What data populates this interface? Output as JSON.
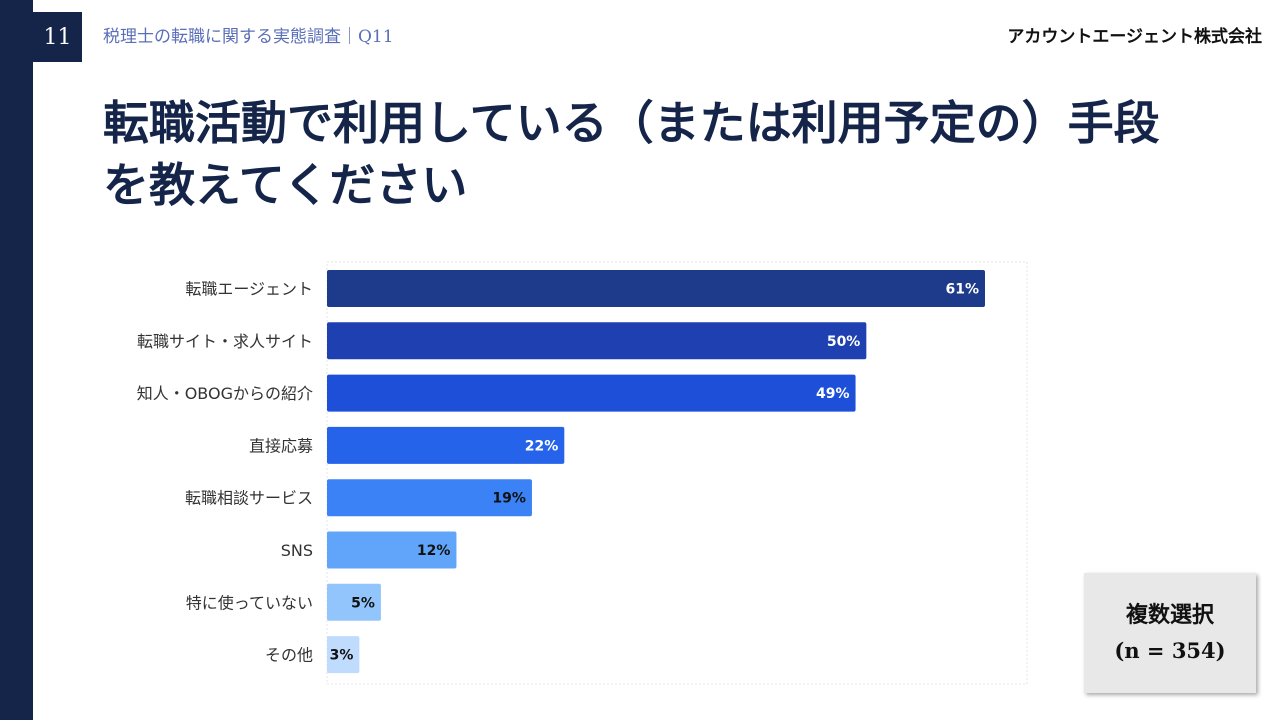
{
  "header": {
    "page_number": "11",
    "survey_label": "税理士の転職に関する実態調査｜Q11",
    "company": "アカウントエージェント株式会社"
  },
  "title": "転職活動で利用している（または利用予定の）手段を教えてください",
  "badge": {
    "line1": "複数選択",
    "line2": "(n = 354)"
  },
  "chart_data": {
    "type": "bar",
    "orientation": "horizontal",
    "categories": [
      "転職エージェント",
      "転職サイト・求人サイト",
      "知人・OBOGからの紹介",
      "直接応募",
      "転職相談サービス",
      "SNS",
      "特に使っていない",
      "その他"
    ],
    "values": [
      61,
      50,
      49,
      22,
      19,
      12,
      5,
      3
    ],
    "value_labels": [
      "61%",
      "50%",
      "49%",
      "22%",
      "19%",
      "12%",
      "5%",
      "3%"
    ],
    "unit": "%",
    "bar_colors": [
      "#1e3a8a",
      "#1f40b0",
      "#1d4fd8",
      "#2563eb",
      "#3b82f6",
      "#60a5fa",
      "#93c5fd",
      "#bfdbfe"
    ],
    "label_colors": [
      "#ffffff",
      "#ffffff",
      "#ffffff",
      "#ffffff",
      "#111111",
      "#111111",
      "#111111",
      "#111111"
    ],
    "xlim": [
      0,
      61
    ]
  }
}
